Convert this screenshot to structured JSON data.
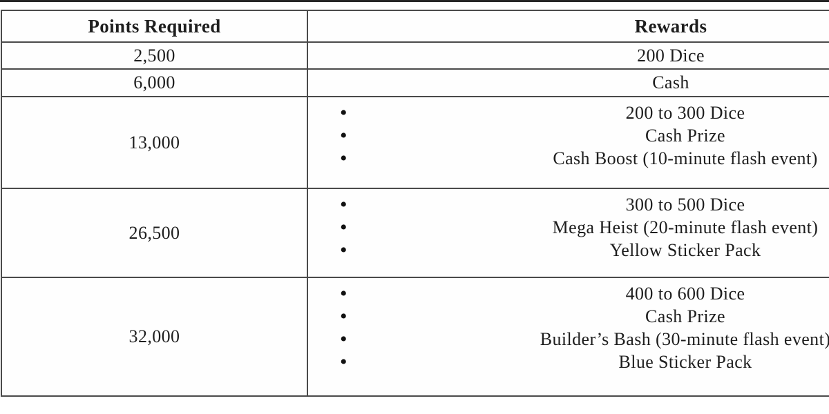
{
  "table": {
    "header": {
      "points_label": "Points Required",
      "rewards_label": "Rewards"
    },
    "rows": [
      {
        "points": "2,500",
        "bulleted": false,
        "rewards": [
          "200 Dice"
        ]
      },
      {
        "points": "6,000",
        "bulleted": false,
        "rewards": [
          "Cash"
        ]
      },
      {
        "points": "13,000",
        "bulleted": true,
        "rewards": [
          "200 to 300 Dice",
          "Cash Prize",
          "Cash Boost (10-minute flash event)"
        ]
      },
      {
        "points": "26,500",
        "bulleted": true,
        "rewards": [
          "300 to 500 Dice",
          "Mega Heist (20-minute flash event)",
          "Yellow Sticker Pack"
        ]
      },
      {
        "points": "32,000",
        "bulleted": true,
        "rewards": [
          "400 to 600 Dice",
          "Cash Prize",
          "Builder’s Bash (30-minute flash event)",
          "Blue Sticker Pack"
        ]
      }
    ],
    "colors": {
      "border": "#4a4a4a",
      "text": "#1e1e1e",
      "background": "#ffffff",
      "top_strip": "#262626"
    }
  }
}
